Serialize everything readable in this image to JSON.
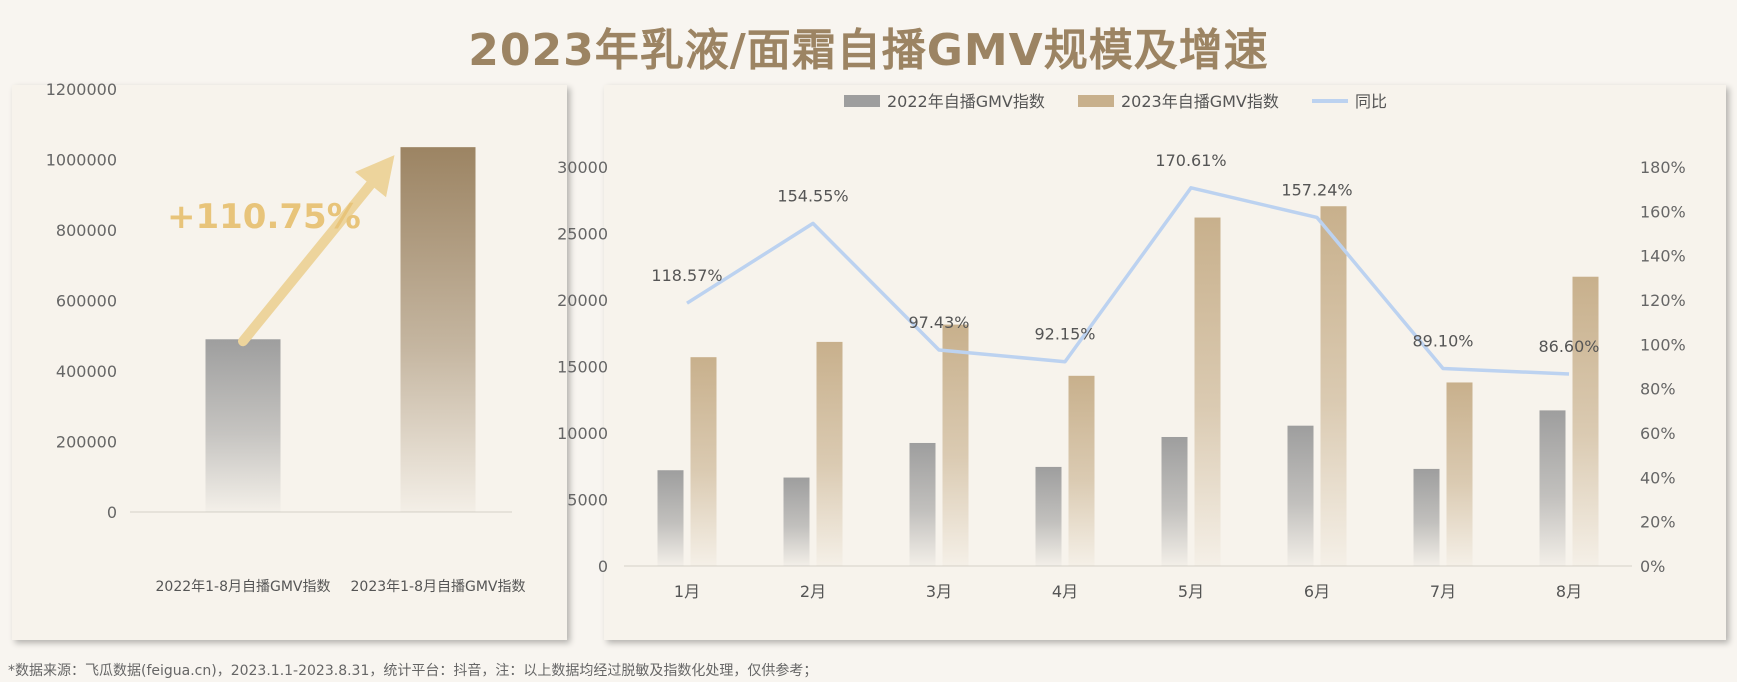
{
  "page": {
    "title": "2023年乳液/面霜自播GMV规模及增速",
    "footnote": "*数据来源：飞瓜数据(feigua.cn)，2023.1.1-2023.8.31，统计平台：抖音，注：以上数据均经过脱敏及指数化处理，仅供参考；"
  },
  "chart_data": [
    {
      "type": "bar",
      "categories": [
        "2022年1-8月自播GMV指数",
        "2023年1-8月自播GMV指数"
      ],
      "values": [
        490000,
        1035000
      ],
      "ylim": [
        0,
        1200000
      ],
      "yticks": [
        "0",
        "200000",
        "400000",
        "600000",
        "800000",
        "1000000",
        "1200000"
      ],
      "ytick_values": [
        0,
        200000,
        400000,
        600000,
        800000,
        1000000,
        1200000
      ],
      "annotation": "+110.75%",
      "colors": {
        "bar2022": "#9e9e9e",
        "bar2023": "#9c8463",
        "arrow": "#edd49c"
      }
    },
    {
      "type": "bar",
      "categories": [
        "1月",
        "2月",
        "3月",
        "4月",
        "5月",
        "6月",
        "7月",
        "8月"
      ],
      "series": [
        {
          "name": "2022年自播GMV指数",
          "values": [
            7200,
            6650,
            9250,
            7450,
            9700,
            10550,
            7300,
            11700
          ],
          "color": "#9e9e9e"
        },
        {
          "name": "2023年自播GMV指数",
          "values": [
            15700,
            16850,
            18150,
            14300,
            26200,
            27050,
            13800,
            21750
          ],
          "color": "#c8b08c"
        },
        {
          "name": "同比",
          "type": "line",
          "values": [
            118.57,
            154.55,
            97.43,
            92.15,
            170.61,
            157.24,
            89.1,
            86.6
          ],
          "labels": [
            "118.57%",
            "154.55%",
            "97.43%",
            "92.15%",
            "170.61%",
            "157.24%",
            "89.10%",
            "86.60%"
          ],
          "color": "#bcd2f0"
        }
      ],
      "ylim": [
        0,
        30000
      ],
      "yticks": [
        "0",
        "5000",
        "10000",
        "15000",
        "20000",
        "25000",
        "30000"
      ],
      "ytick_values": [
        0,
        5000,
        10000,
        15000,
        20000,
        25000,
        30000
      ],
      "y2lim": [
        0,
        180
      ],
      "y2ticks": [
        "0%",
        "20%",
        "40%",
        "60%",
        "80%",
        "100%",
        "120%",
        "140%",
        "160%",
        "180%"
      ],
      "y2tick_values": [
        0,
        20,
        40,
        60,
        80,
        100,
        120,
        140,
        160,
        180
      ],
      "legend": "top-right"
    }
  ]
}
